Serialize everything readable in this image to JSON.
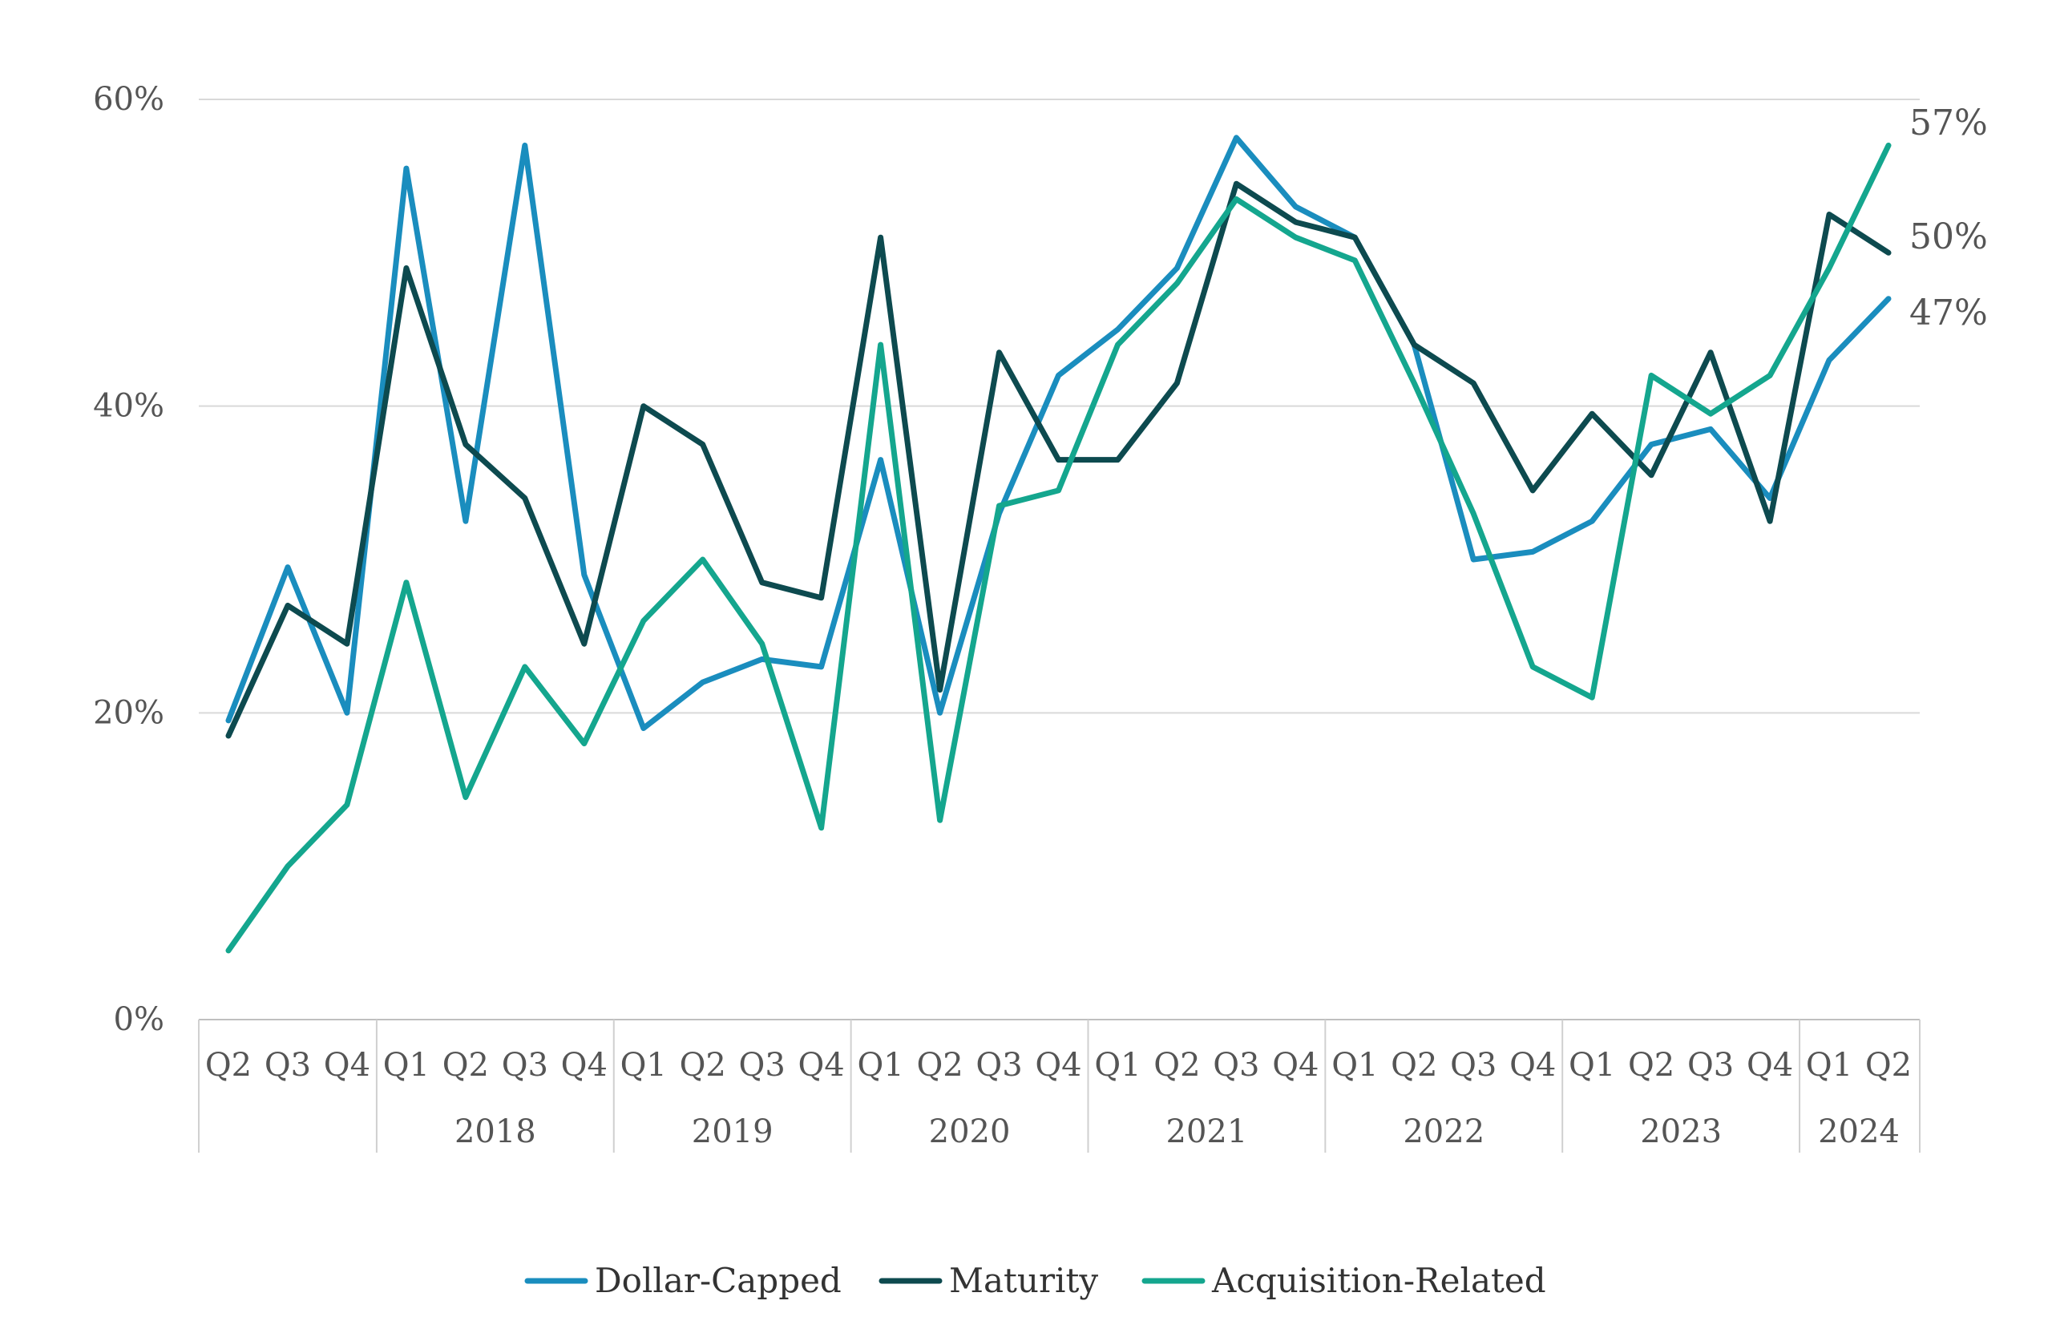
{
  "chart_data": {
    "type": "line",
    "title": "",
    "xlabel": "",
    "ylabel": "",
    "ylim": [
      0,
      60
    ],
    "y_ticks": [
      "0%",
      "20%",
      "40%",
      "60%"
    ],
    "grid": "horizontal",
    "legend_position": "bottom",
    "quarters": [
      "Q2",
      "Q3",
      "Q4",
      "Q1",
      "Q2",
      "Q3",
      "Q4",
      "Q1",
      "Q2",
      "Q3",
      "Q4",
      "Q1",
      "Q2",
      "Q3",
      "Q4",
      "Q1",
      "Q2",
      "Q3",
      "Q4",
      "Q1",
      "Q2",
      "Q3",
      "Q4",
      "Q1",
      "Q2",
      "Q3",
      "Q4",
      "Q1",
      "Q2"
    ],
    "year_groups": [
      {
        "label": "",
        "quarters": 3
      },
      {
        "label": "2018",
        "quarters": 4
      },
      {
        "label": "2019",
        "quarters": 4
      },
      {
        "label": "2020",
        "quarters": 4
      },
      {
        "label": "2021",
        "quarters": 4
      },
      {
        "label": "2022",
        "quarters": 4
      },
      {
        "label": "2023",
        "quarters": 4
      },
      {
        "label": "2024",
        "quarters": 2
      }
    ],
    "series": [
      {
        "name": "Dollar-Capped",
        "color": "#1A8DBE",
        "values": [
          19.5,
          29.5,
          20.0,
          55.5,
          32.5,
          57.0,
          29.0,
          19.0,
          22.0,
          23.5,
          23.0,
          36.5,
          20.0,
          33.0,
          42.0,
          45.0,
          49.0,
          57.5,
          53.0,
          51.0,
          44.0,
          30.0,
          30.5,
          32.5,
          37.5,
          38.5,
          34.0,
          43.0,
          47.0
        ],
        "end_label": "47%"
      },
      {
        "name": "Maturity",
        "color": "#0D4A4F",
        "values": [
          18.5,
          27.0,
          24.5,
          49.0,
          37.5,
          34.0,
          24.5,
          40.0,
          37.5,
          28.5,
          27.5,
          51.0,
          21.5,
          43.5,
          36.5,
          36.5,
          41.5,
          54.5,
          52.0,
          51.0,
          44.0,
          41.5,
          34.5,
          39.5,
          35.5,
          43.5,
          32.5,
          52.5,
          50.0
        ],
        "end_label": "50%"
      },
      {
        "name": "Acquisition-Related",
        "color": "#14A68E",
        "values": [
          4.5,
          10.0,
          14.0,
          28.5,
          14.5,
          23.0,
          18.0,
          26.0,
          30.0,
          24.5,
          12.5,
          44.0,
          13.0,
          33.5,
          34.5,
          44.0,
          48.0,
          53.5,
          51.0,
          49.5,
          41.5,
          33.0,
          23.0,
          21.0,
          42.0,
          39.5,
          42.0,
          49.0,
          57.0
        ],
        "end_label": "57%"
      }
    ]
  }
}
